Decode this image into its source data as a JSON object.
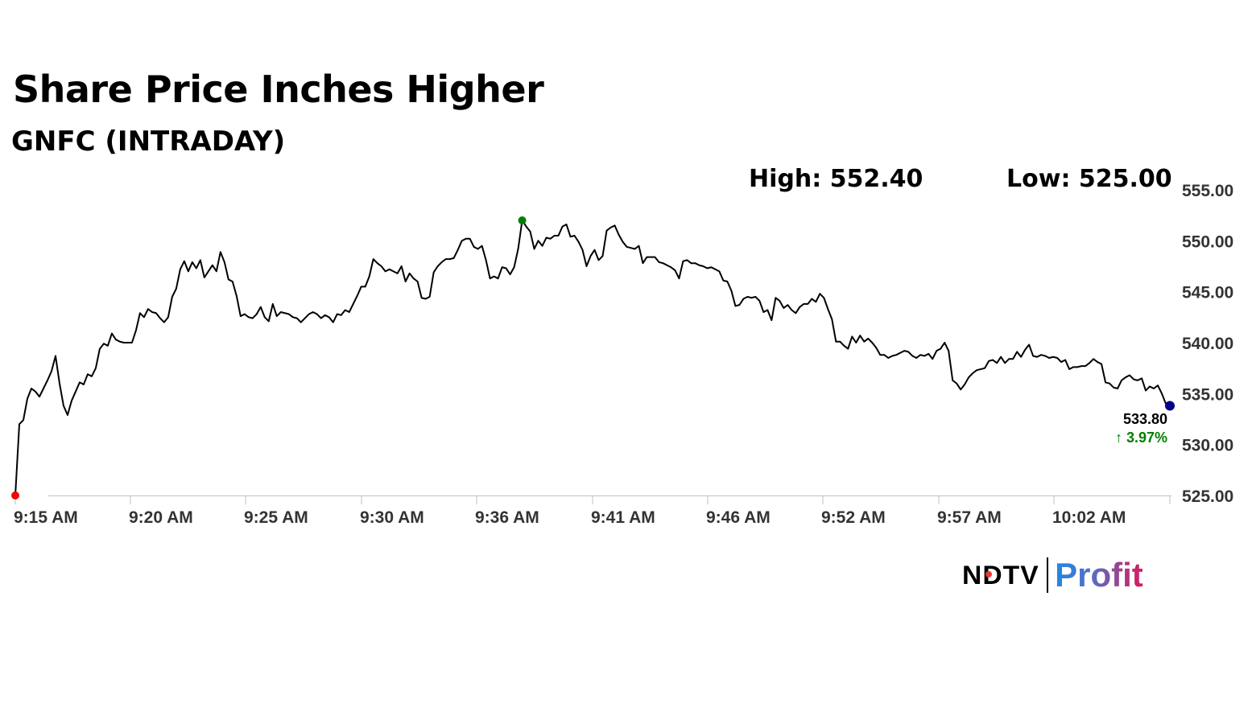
{
  "header": {
    "title": "Share Price Inches Higher",
    "subtitle": "GNFC (INTRADAY)",
    "high_label": "High: 552.40",
    "low_label": "Low: 525.00"
  },
  "last": {
    "price": "533.80",
    "change": "3.97%",
    "arrow": "↑"
  },
  "logo": {
    "ndtv": "NDTV",
    "profit": "Profit"
  },
  "colors": {
    "line": "#000000",
    "low_marker": "#ff0000",
    "high_marker": "#008000",
    "last_marker": "#00008b",
    "change_up": "#008000",
    "axis": "#c0c0c0",
    "tick_text": "#333333"
  },
  "chart_data": {
    "type": "line",
    "title": "Share Price Inches Higher",
    "subtitle": "GNFC (INTRADAY)",
    "xlabel": "",
    "ylabel": "",
    "ylim": [
      525,
      555
    ],
    "y_ticks": [
      "555.00",
      "550.00",
      "545.00",
      "540.00",
      "535.00",
      "530.00",
      "525.00"
    ],
    "x_ticks": [
      "9:15 AM",
      "9:20 AM",
      "9:25 AM",
      "9:30 AM",
      "9:36 AM",
      "9:41 AM",
      "9:46 AM",
      "9:52 AM",
      "9:57 AM",
      "10:02 AM"
    ],
    "y_axis_side": "right",
    "grid": false,
    "high": 552.4,
    "low": 525.0,
    "last": 533.8,
    "change_pct": 3.97,
    "series": [
      {
        "values": [
          525.0,
          532.0,
          532.4,
          534.5,
          535.5,
          535.2,
          534.7,
          535.5,
          536.3,
          537.2,
          538.7,
          536.0,
          533.8,
          532.9,
          534.3,
          535.2,
          536.1,
          535.9,
          536.9,
          536.7,
          537.5,
          539.4,
          539.9,
          539.7,
          540.9,
          540.3,
          540.1,
          540.0,
          540.0,
          540.0,
          541.2,
          542.9,
          542.5,
          543.3,
          543.0,
          542.9,
          542.4,
          542.0,
          542.5,
          544.5,
          545.3,
          547.2,
          548.0,
          547.0,
          547.9,
          547.3,
          548.1,
          546.4,
          547.0,
          547.6,
          547.0,
          548.9,
          547.9,
          546.2,
          546.0,
          544.6,
          542.6,
          542.8,
          542.5,
          542.4,
          542.8,
          543.5,
          542.5,
          542.1,
          543.8,
          542.6,
          543.0,
          542.9,
          542.8,
          542.5,
          542.4,
          542.0,
          542.4,
          542.8,
          543.0,
          542.8,
          542.4,
          542.7,
          542.5,
          542.0,
          542.8,
          542.7,
          543.2,
          543.0,
          543.8,
          544.6,
          545.5,
          545.5,
          546.5,
          548.2,
          547.8,
          547.5,
          547.0,
          547.2,
          547.0,
          546.8,
          547.5,
          546.0,
          546.8,
          546.3,
          546.0,
          544.4,
          544.3,
          544.5,
          546.9,
          547.5,
          547.9,
          548.2,
          548.2,
          548.3,
          549.1,
          550.0,
          550.2,
          550.2,
          549.4,
          549.2,
          549.5,
          548.1,
          546.3,
          546.5,
          546.3,
          547.4,
          547.3,
          546.7,
          547.4,
          549.2,
          552.0,
          551.4,
          550.9,
          549.2,
          550.0,
          549.5,
          550.3,
          550.2,
          550.5,
          550.5,
          551.4,
          551.6,
          550.4,
          550.5,
          549.9,
          549.1,
          547.5,
          548.5,
          549.1,
          548.1,
          548.5,
          551.0,
          551.3,
          551.5,
          550.6,
          549.9,
          549.4,
          549.3,
          549.2,
          549.5,
          547.8,
          548.4,
          548.4,
          548.4,
          547.9,
          547.8,
          547.6,
          547.4,
          547.1,
          546.3,
          548.0,
          548.1,
          547.8,
          547.8,
          547.6,
          547.5,
          547.3,
          547.4,
          547.2,
          547.0,
          546.1,
          546.0,
          545.1,
          543.6,
          543.7,
          544.3,
          544.5,
          544.4,
          544.5,
          544.1,
          543.0,
          543.2,
          542.2,
          544.4,
          544.1,
          543.4,
          543.7,
          543.2,
          542.9,
          543.5,
          543.8,
          543.8,
          544.3,
          544.0,
          544.8,
          544.4,
          543.3,
          542.3,
          540.1,
          540.1,
          539.7,
          539.4,
          540.6,
          540.0,
          540.7,
          540.1,
          540.4,
          540.0,
          539.5,
          538.8,
          538.8,
          538.5,
          538.7,
          538.8,
          539.0,
          539.2,
          539.1,
          538.7,
          538.5,
          538.8,
          538.7,
          538.9,
          538.4,
          539.2,
          539.4,
          540.0,
          539.2,
          536.3,
          536.0,
          535.4,
          535.9,
          536.6,
          537.0,
          537.3,
          537.4,
          537.5,
          538.2,
          538.3,
          538.0,
          538.6,
          538.0,
          538.4,
          538.4,
          539.1,
          538.6,
          539.3,
          539.8,
          538.7,
          538.6,
          538.8,
          538.7,
          538.5,
          538.6,
          538.5,
          538.1,
          538.3,
          537.4,
          537.6,
          537.6,
          537.7,
          537.7,
          538.0,
          538.4,
          538.1,
          537.9,
          536.1,
          536.0,
          535.6,
          535.5,
          536.3,
          536.6,
          536.8,
          536.4,
          536.3,
          536.5,
          535.3,
          535.7,
          535.5,
          535.8,
          535.0,
          534.0,
          533.8
        ]
      }
    ]
  }
}
